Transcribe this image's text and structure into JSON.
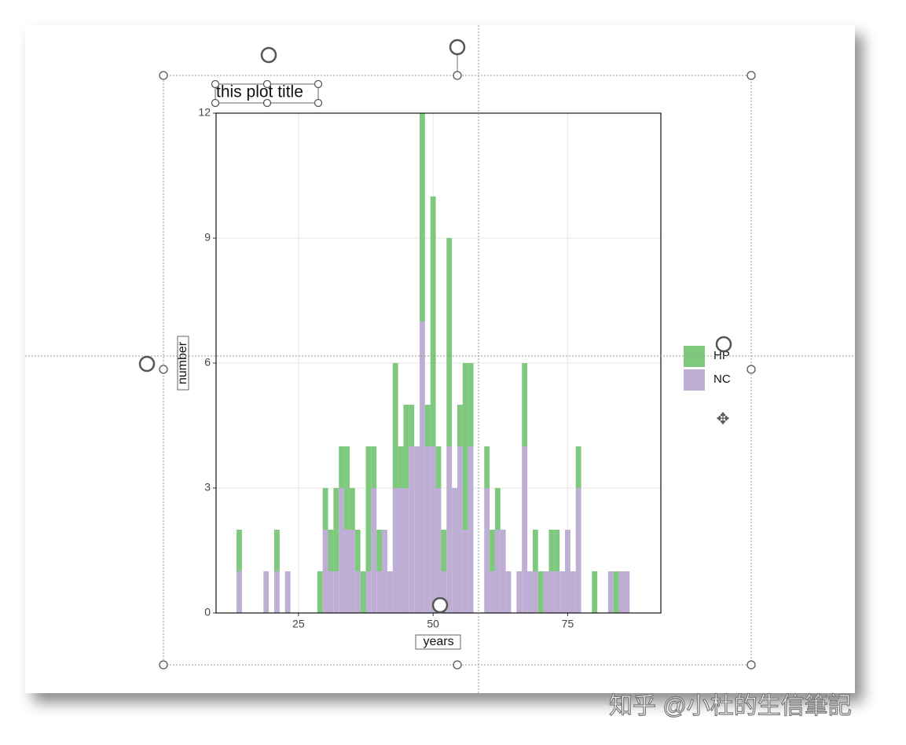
{
  "chart_data": {
    "type": "histogram",
    "title": "this plot title",
    "x_label": "years",
    "y_label": "number",
    "bins": [
      13.5,
      14.5,
      15.5,
      16.5,
      17.5,
      18.5,
      19.5,
      20.5,
      21.5,
      22.5,
      23.5,
      24.5,
      25.5,
      26.5,
      27.5,
      28.5,
      29.5,
      30.5,
      31.5,
      32.5,
      33.5,
      34.5,
      35.5,
      36.5,
      37.5,
      38.5,
      39.5,
      40.5,
      41.5,
      42.5,
      43.5,
      44.5,
      45.5,
      46.5,
      47.5,
      48.5,
      49.5,
      50.5,
      51.5,
      52.5,
      53.5,
      54.5,
      55.5,
      56.5,
      57.5,
      58.5,
      59.5,
      60.5,
      61.5,
      62.5,
      63.5,
      64.5,
      65.5,
      66.5,
      67.5,
      68.5,
      69.5,
      70.5,
      71.5,
      72.5,
      73.5,
      74.5,
      75.5,
      76.5,
      77.5,
      78.5,
      79.5,
      80.5,
      81.5,
      82.5,
      83.5,
      84.5,
      85.5,
      86.5,
      87.5,
      88.5
    ],
    "stacked": true,
    "series": [
      {
        "name": "HP",
        "color": "#7fc97f",
        "values": [
          1,
          0,
          0,
          0,
          0,
          0,
          0,
          1,
          0,
          0,
          0,
          0,
          0,
          0,
          0,
          1,
          1,
          1,
          2,
          1,
          2,
          1,
          1,
          1,
          3,
          1,
          1,
          0,
          0,
          3,
          1,
          2,
          1,
          0,
          5,
          1,
          6,
          1,
          1,
          5,
          0,
          1,
          4,
          2,
          0,
          0,
          1,
          1,
          1,
          0,
          0,
          0,
          0,
          2,
          0,
          1,
          1,
          0,
          1,
          1,
          0,
          0,
          0,
          1,
          0,
          0,
          1,
          0,
          0,
          0,
          1,
          0,
          0,
          0,
          0
        ]
      },
      {
        "name": "NC",
        "color": "#beaed4",
        "values": [
          1,
          0,
          0,
          0,
          0,
          1,
          0,
          1,
          0,
          1,
          0,
          0,
          0,
          0,
          0,
          0,
          2,
          1,
          1,
          3,
          2,
          2,
          1,
          0,
          1,
          3,
          1,
          2,
          1,
          3,
          3,
          3,
          4,
          4,
          7,
          4,
          4,
          3,
          1,
          4,
          3,
          4,
          2,
          4,
          0,
          0,
          3,
          1,
          2,
          2,
          1,
          0,
          1,
          4,
          1,
          1,
          0,
          1,
          1,
          1,
          1,
          2,
          1,
          3,
          0,
          0,
          0,
          0,
          0,
          1,
          0,
          1,
          1,
          0,
          0
        ]
      }
    ],
    "xlim": [
      9.7,
      92.3
    ],
    "ylim": [
      0,
      12
    ],
    "xticks": [
      25,
      50,
      75
    ],
    "yticks": [
      0,
      3,
      6,
      9,
      12
    ],
    "grid": true
  },
  "watermark": "知乎 @小杜的生信筆記"
}
